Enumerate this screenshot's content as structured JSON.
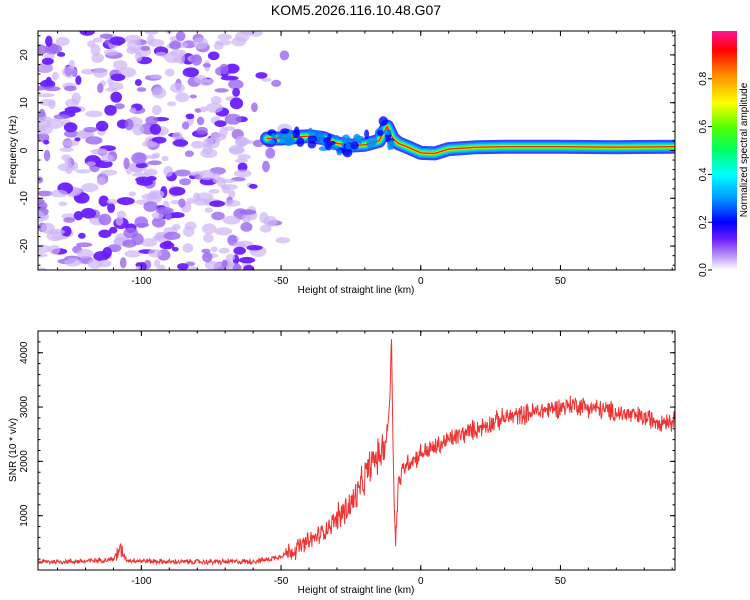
{
  "page_title": "KOM5.2026.116.10.48.G07",
  "chart_data": [
    {
      "type": "heatmap",
      "id": "spectrogram",
      "xlabel": "Height of straight line (km)",
      "ylabel": "Frequency (Hz)",
      "xlim": [
        -137,
        91
      ],
      "ylim": [
        -25,
        25
      ],
      "xticks": [
        -100,
        -50,
        0,
        50
      ],
      "xtick_labels": [
        "-100",
        "-50",
        "0",
        "50"
      ],
      "yticks": [
        -20,
        -10,
        0,
        10,
        20
      ],
      "ytick_labels": [
        "-20",
        "-10",
        "0",
        "10",
        "20"
      ],
      "colorbar": {
        "label": "Normalized spectral amplitude",
        "range": [
          0,
          1
        ],
        "ticks": [
          0.0,
          0.2,
          0.4,
          0.6,
          0.8
        ],
        "tick_labels": [
          "0.0",
          "0.2",
          "0.4",
          "0.6",
          "0.8"
        ]
      },
      "noise_region": {
        "x_from": -137,
        "x_to": -52
      },
      "signal_track": {
        "x": [
          -55,
          -50,
          -45,
          -40,
          -35,
          -30,
          -25,
          -20,
          -15,
          -12,
          -10,
          -8,
          -5,
          0,
          5,
          10,
          20,
          30,
          50,
          70,
          91
        ],
        "frequency": [
          2.5,
          2.5,
          2.8,
          3,
          2.6,
          1.5,
          1,
          1.2,
          2,
          5,
          2.5,
          1.5,
          0.8,
          -0.5,
          -0.6,
          0.3,
          0.7,
          0.8,
          0.8,
          0.7,
          0.8
        ]
      }
    },
    {
      "type": "line",
      "id": "snr",
      "xlabel": "Height of straight line (km)",
      "ylabel": "SNR (10 * v/v)",
      "xlim": [
        -137,
        91
      ],
      "ylim": [
        0,
        4400
      ],
      "xticks": [
        -100,
        -50,
        0,
        50
      ],
      "xtick_labels": [
        "-100",
        "-50",
        "0",
        "50"
      ],
      "yticks": [
        1000,
        2000,
        3000,
        4000
      ],
      "ytick_labels": [
        "1000",
        "2000",
        "3000",
        "4000"
      ],
      "series": [
        {
          "name": "SNR",
          "color": "#ee3333",
          "x": [
            -137,
            -120,
            -110,
            -108,
            -105,
            -90,
            -70,
            -60,
            -55,
            -50,
            -45,
            -40,
            -35,
            -30,
            -25,
            -22,
            -20,
            -18,
            -15,
            -13,
            -12,
            -11,
            -10.5,
            -10,
            -9.5,
            -9,
            -8,
            -6,
            -4,
            -2,
            0,
            5,
            10,
            15,
            20,
            25,
            30,
            35,
            40,
            45,
            50,
            55,
            60,
            65,
            70,
            75,
            80,
            85,
            91
          ],
          "y": [
            150,
            160,
            200,
            380,
            180,
            150,
            150,
            160,
            190,
            260,
            380,
            520,
            700,
            950,
            1200,
            1450,
            1700,
            1950,
            2100,
            2300,
            2500,
            3200,
            4400,
            2500,
            1200,
            500,
            1600,
            1900,
            2000,
            2050,
            2150,
            2250,
            2400,
            2500,
            2600,
            2700,
            2800,
            2850,
            2900,
            2950,
            3000,
            3050,
            3000,
            2950,
            2900,
            2850,
            2800,
            2750,
            2750
          ]
        }
      ]
    }
  ]
}
